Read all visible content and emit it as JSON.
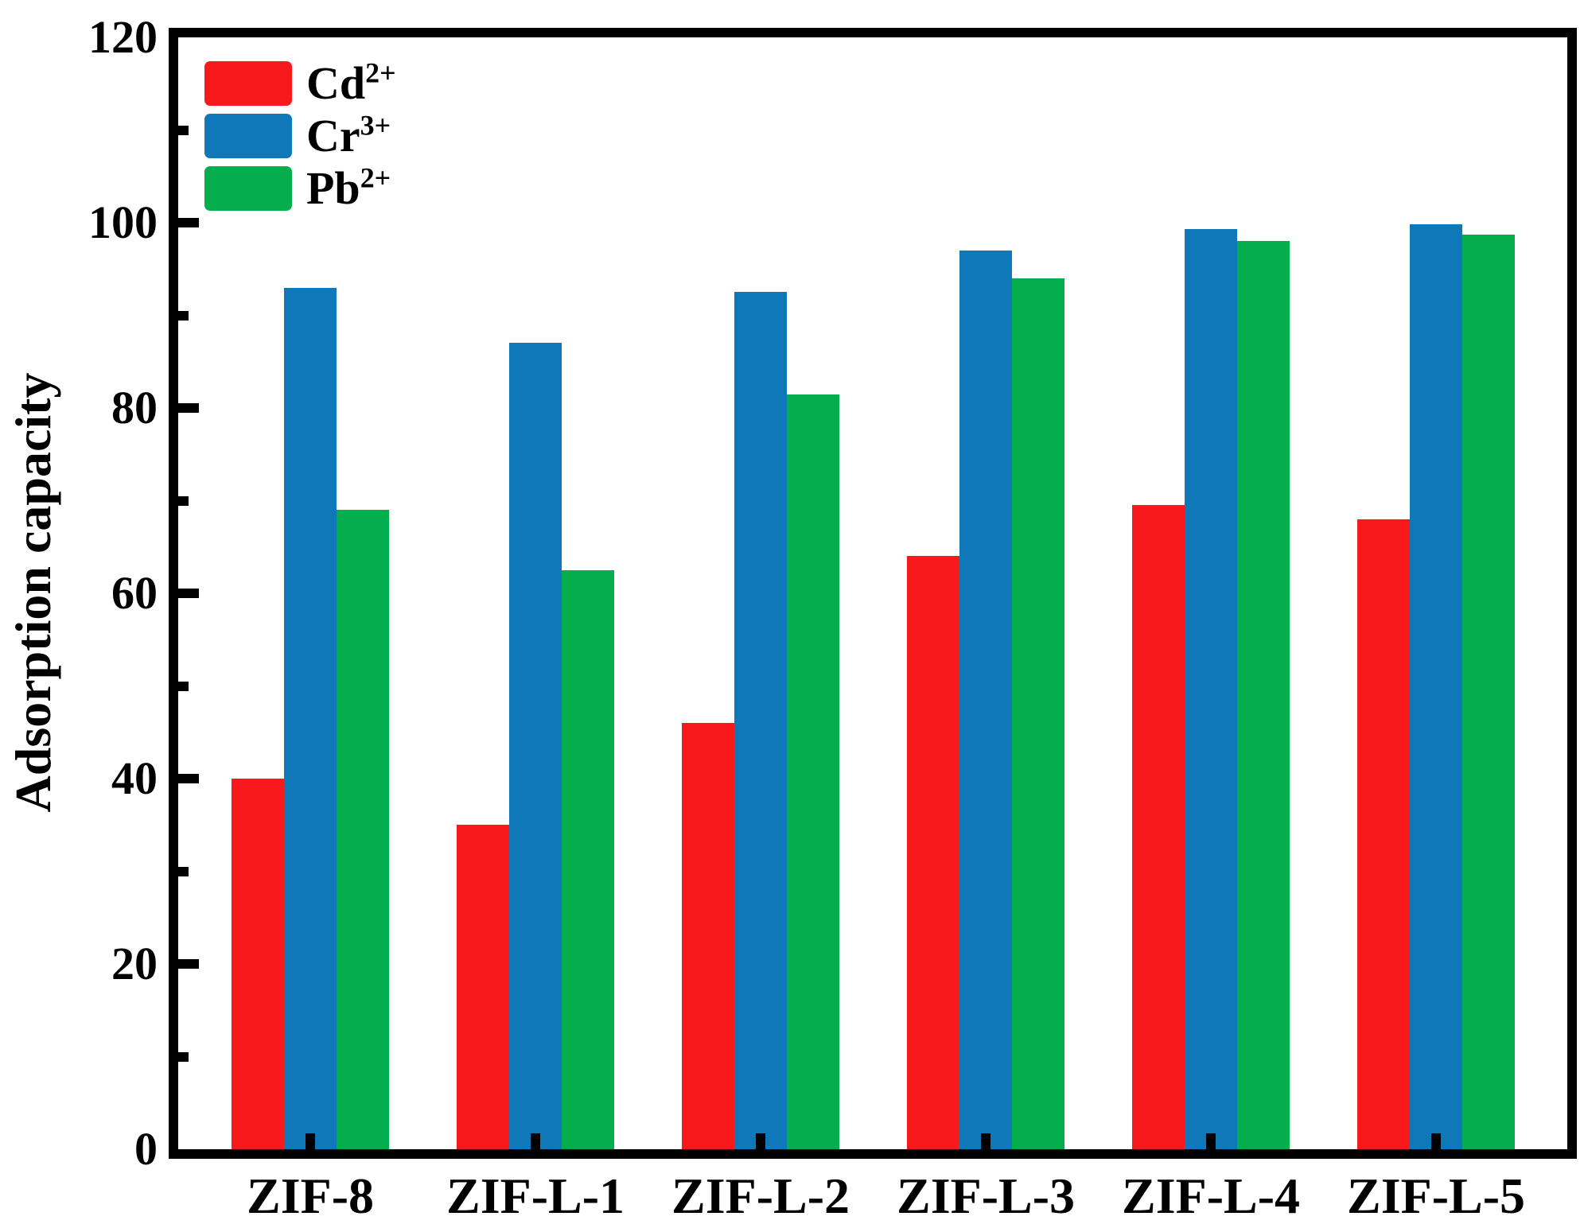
{
  "figure": {
    "background": "#ffffff",
    "axis_color": "#000000"
  },
  "chart_data": {
    "type": "bar",
    "title": "",
    "xlabel": "",
    "ylabel": "Adsorption capacity",
    "ylim": [
      0,
      120
    ],
    "yticks": [
      0,
      20,
      40,
      60,
      80,
      100,
      120
    ],
    "minor_yticks": [
      10,
      30,
      50,
      70,
      90,
      110
    ],
    "grid": false,
    "legend_position": "top-left-inside",
    "categories": [
      "ZIF-8",
      "ZIF-L-1",
      "ZIF-L-2",
      "ZIF-L-3",
      "ZIF-L-4",
      "ZIF-L-5"
    ],
    "series": [
      {
        "name": "Cd2+",
        "label": {
          "base": "Cd",
          "sup": "2+"
        },
        "color": "#F8191C",
        "values": [
          40,
          35,
          46,
          64,
          69.5,
          68
        ]
      },
      {
        "name": "Cr3+",
        "label": {
          "base": "Cr",
          "sup": "3+"
        },
        "color": "#0E78B8",
        "values": [
          93,
          87,
          92.5,
          97,
          99.3,
          99.8
        ]
      },
      {
        "name": "Pb2+",
        "label": {
          "base": "Pb",
          "sup": "2+"
        },
        "color": "#05AE4C",
        "values": [
          69,
          62.5,
          81.5,
          94,
          98,
          98.7
        ]
      }
    ]
  }
}
